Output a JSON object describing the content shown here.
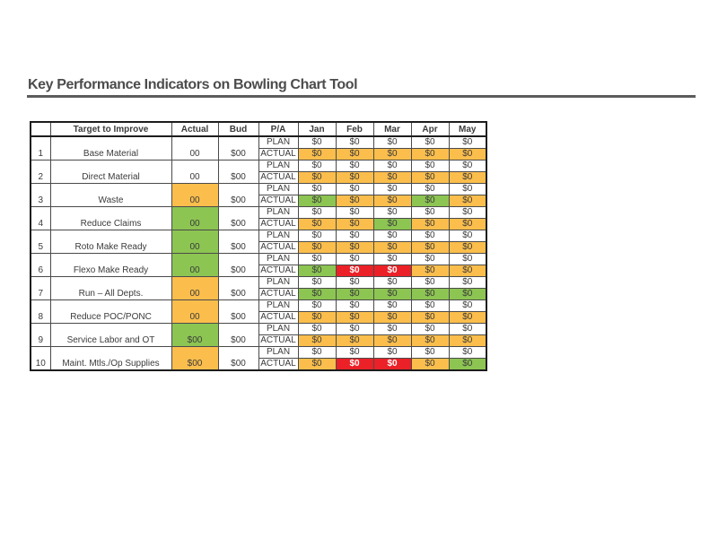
{
  "title": "Key Performance Indicators on Bowling Chart Tool",
  "colors": {
    "orange": "#fbbe4c",
    "green": "#8cc552",
    "red": "#eb2127",
    "white": "#ffffff"
  },
  "table": {
    "headers": {
      "num": "",
      "target": "Target to Improve",
      "actual": "Actual",
      "bud": "Bud",
      "pa": "P/A",
      "months": [
        "Jan",
        "Feb",
        "Mar",
        "Apr",
        "May"
      ]
    },
    "plan_label": "PLAN",
    "actual_label": "ACTUAL",
    "rows": [
      {
        "num": "1",
        "target": "Base Material",
        "actual": "00",
        "actual_bg": "white",
        "bud": "$00",
        "plan": {
          "values": [
            "$0",
            "$0",
            "$0",
            "$0",
            "$0"
          ],
          "bg": [
            "white",
            "white",
            "white",
            "white",
            "white"
          ]
        },
        "act": {
          "values": [
            "$0",
            "$0",
            "$0",
            "$0",
            "$0"
          ],
          "bg": [
            "orange",
            "orange",
            "orange",
            "orange",
            "orange"
          ]
        }
      },
      {
        "num": "2",
        "target": "Direct Material",
        "actual": "00",
        "actual_bg": "white",
        "bud": "$00",
        "plan": {
          "values": [
            "$0",
            "$0",
            "$0",
            "$0",
            "$0"
          ],
          "bg": [
            "white",
            "white",
            "white",
            "white",
            "white"
          ]
        },
        "act": {
          "values": [
            "$0",
            "$0",
            "$0",
            "$0",
            "$0"
          ],
          "bg": [
            "orange",
            "orange",
            "orange",
            "orange",
            "orange"
          ]
        }
      },
      {
        "num": "3",
        "target": "Waste",
        "actual": "00",
        "actual_bg": "orange",
        "bud": "$00",
        "plan": {
          "values": [
            "$0",
            "$0",
            "$0",
            "$0",
            "$0"
          ],
          "bg": [
            "white",
            "white",
            "white",
            "white",
            "white"
          ]
        },
        "act": {
          "values": [
            "$0",
            "$0",
            "$0",
            "$0",
            "$0"
          ],
          "bg": [
            "green",
            "orange",
            "orange",
            "green",
            "orange"
          ]
        }
      },
      {
        "num": "4",
        "target": "Reduce Claims",
        "actual": "00",
        "actual_bg": "green",
        "bud": "$00",
        "plan": {
          "values": [
            "$0",
            "$0",
            "$0",
            "$0",
            "$0"
          ],
          "bg": [
            "white",
            "white",
            "white",
            "white",
            "white"
          ]
        },
        "act": {
          "values": [
            "$0",
            "$0",
            "$0",
            "$0",
            "$0"
          ],
          "bg": [
            "orange",
            "orange",
            "green",
            "orange",
            "orange"
          ]
        }
      },
      {
        "num": "5",
        "target": "Roto Make Ready",
        "actual": "00",
        "actual_bg": "green",
        "bud": "$00",
        "plan": {
          "values": [
            "$0",
            "$0",
            "$0",
            "$0",
            "$0"
          ],
          "bg": [
            "white",
            "white",
            "white",
            "white",
            "white"
          ]
        },
        "act": {
          "values": [
            "$0",
            "$0",
            "$0",
            "$0",
            "$0"
          ],
          "bg": [
            "orange",
            "orange",
            "orange",
            "orange",
            "orange"
          ]
        }
      },
      {
        "num": "6",
        "target": "Flexo Make Ready",
        "actual": "00",
        "actual_bg": "green",
        "bud": "$00",
        "plan": {
          "values": [
            "$0",
            "$0",
            "$0",
            "$0",
            "$0"
          ],
          "bg": [
            "white",
            "white",
            "white",
            "white",
            "white"
          ]
        },
        "act": {
          "values": [
            "$0",
            "$0",
            "$0",
            "$0",
            "$0"
          ],
          "bg": [
            "green",
            "red",
            "red",
            "orange",
            "orange"
          ]
        }
      },
      {
        "num": "7",
        "target": "Run – All Depts.",
        "actual": "00",
        "actual_bg": "orange",
        "bud": "$00",
        "plan": {
          "values": [
            "$0",
            "$0",
            "$0",
            "$0",
            "$0"
          ],
          "bg": [
            "white",
            "white",
            "white",
            "white",
            "white"
          ]
        },
        "act": {
          "values": [
            "$0",
            "$0",
            "$0",
            "$0",
            "$0"
          ],
          "bg": [
            "green",
            "green",
            "green",
            "green",
            "green"
          ]
        }
      },
      {
        "num": "8",
        "target": "Reduce POC/PONC",
        "actual": "00",
        "actual_bg": "orange",
        "bud": "$00",
        "plan": {
          "values": [
            "$0",
            "$0",
            "$0",
            "$0",
            "$0"
          ],
          "bg": [
            "white",
            "white",
            "white",
            "white",
            "white"
          ]
        },
        "act": {
          "values": [
            "$0",
            "$0",
            "$0",
            "$0",
            "$0"
          ],
          "bg": [
            "orange",
            "orange",
            "orange",
            "orange",
            "orange"
          ]
        }
      },
      {
        "num": "9",
        "target": "Service Labor and OT",
        "actual": "$00",
        "actual_bg": "green",
        "bud": "$00",
        "plan": {
          "values": [
            "$0",
            "$0",
            "$0",
            "$0",
            "$0"
          ],
          "bg": [
            "white",
            "white",
            "white",
            "white",
            "white"
          ]
        },
        "act": {
          "values": [
            "$0",
            "$0",
            "$0",
            "$0",
            "$0"
          ],
          "bg": [
            "orange",
            "orange",
            "orange",
            "orange",
            "orange"
          ]
        }
      },
      {
        "num": "10",
        "target": "Maint. Mtls./Op Supplies",
        "actual": "$00",
        "actual_bg": "orange",
        "bud": "$00",
        "plan": {
          "values": [
            "$0",
            "$0",
            "$0",
            "$0",
            "$0"
          ],
          "bg": [
            "white",
            "white",
            "white",
            "white",
            "white"
          ]
        },
        "act": {
          "values": [
            "$0",
            "$0",
            "$0",
            "$0",
            "$0"
          ],
          "bg": [
            "orange",
            "red",
            "red",
            "orange",
            "green"
          ]
        }
      }
    ]
  }
}
